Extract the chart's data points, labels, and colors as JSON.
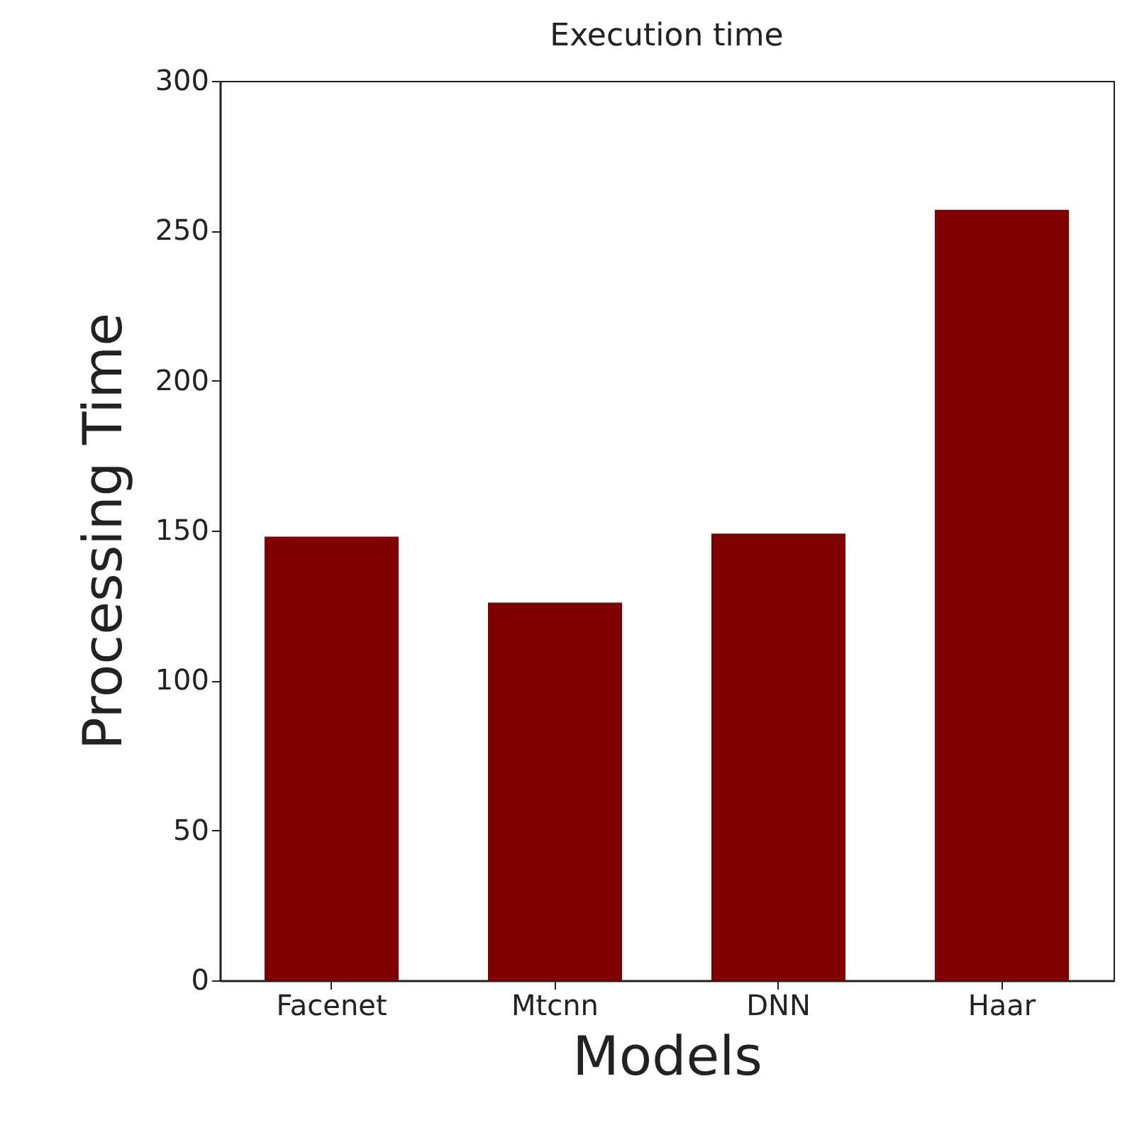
{
  "chart_data": {
    "type": "bar",
    "title": "Execution time",
    "xlabel": "Models",
    "ylabel": "Processing Time",
    "categories": [
      "Facenet",
      "Mtcnn",
      "DNN",
      "Haar"
    ],
    "values": [
      148,
      126,
      149,
      257
    ],
    "color": "#800000",
    "ylim": [
      0,
      300
    ],
    "yticks": [
      0,
      50,
      100,
      150,
      200,
      250,
      300
    ],
    "grid": false
  }
}
